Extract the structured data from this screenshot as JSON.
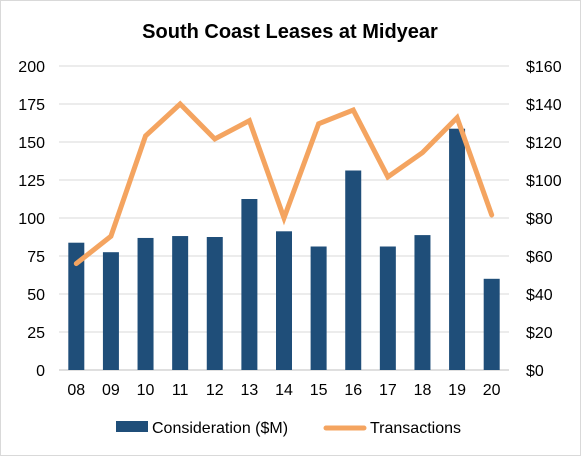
{
  "chart_data": {
    "type": "bar",
    "title": "South Coast Leases at Midyear",
    "categories": [
      "08",
      "09",
      "10",
      "11",
      "12",
      "13",
      "14",
      "15",
      "16",
      "17",
      "18",
      "19",
      "20"
    ],
    "series": [
      {
        "name": "Consideration ($M)",
        "type": "bar",
        "axis": "right",
        "color": "#1f4e79",
        "values": [
          67,
          62,
          69.5,
          70.5,
          70,
          90,
          73,
          65,
          105,
          65,
          71,
          127,
          48
        ]
      },
      {
        "name": "Transactions",
        "type": "line",
        "axis": "left",
        "color": "#f4a460",
        "values": [
          70,
          88,
          154,
          175,
          152,
          164,
          100,
          162,
          171,
          127,
          143,
          166,
          102
        ]
      }
    ],
    "y_left": {
      "min": 0,
      "max": 200,
      "ticks": [
        "0",
        "25",
        "50",
        "75",
        "100",
        "125",
        "150",
        "175",
        "200"
      ]
    },
    "y_right": {
      "min": 0,
      "max": 160,
      "ticks": [
        "$0",
        "$20",
        "$40",
        "$60",
        "$80",
        "$100",
        "$120",
        "$140",
        "$160"
      ]
    },
    "grid": true,
    "legend": "bottom"
  }
}
